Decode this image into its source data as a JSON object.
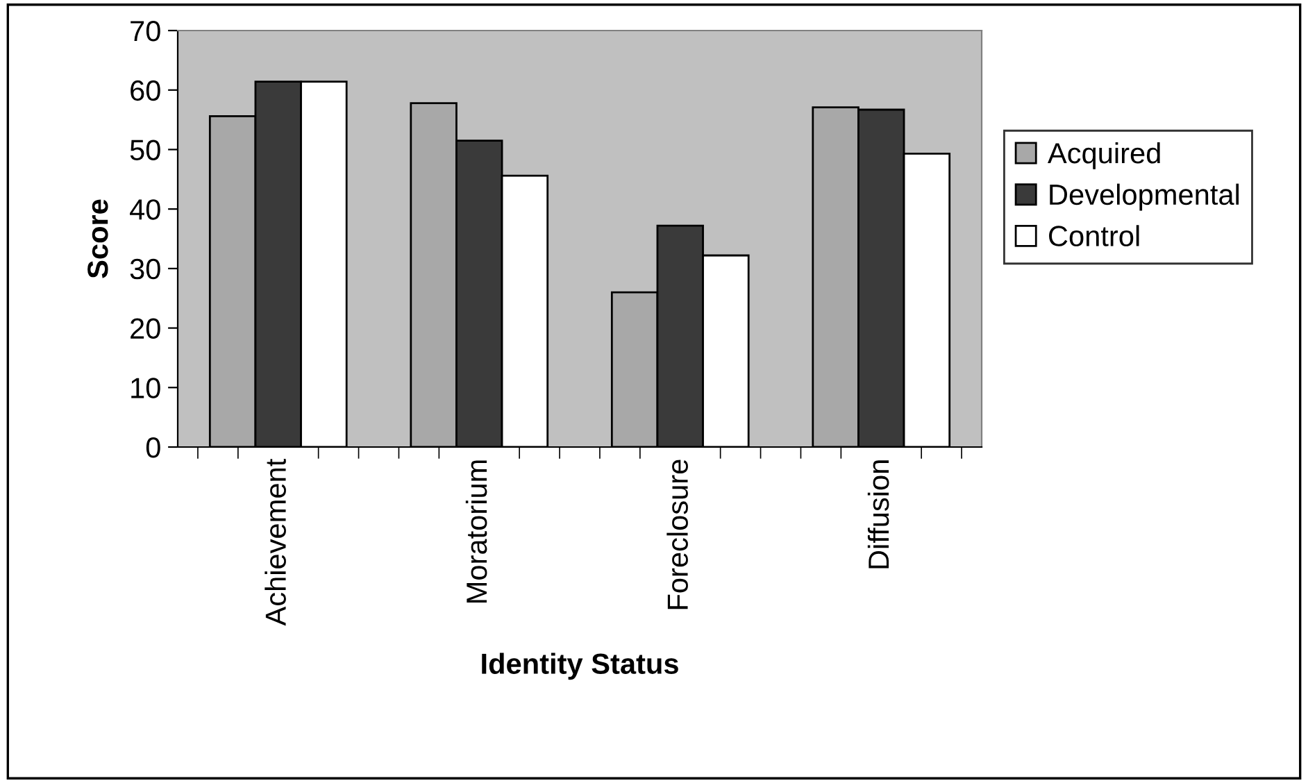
{
  "chart_data": {
    "type": "bar",
    "xlabel": "Identity Status",
    "ylabel": "Score",
    "categories": [
      "Achievement",
      "Moratorium",
      "Foreclosure",
      "Diffusion"
    ],
    "series": [
      {
        "name": "Acquired",
        "color": "#a8a8a8",
        "values": [
          55.6,
          57.8,
          26.0,
          57.1
        ]
      },
      {
        "name": "Developmental",
        "color": "#3a3a3a",
        "values": [
          61.4,
          51.5,
          37.2,
          56.7
        ]
      },
      {
        "name": "Control",
        "color": "#ffffff",
        "values": [
          61.4,
          45.6,
          32.2,
          49.3
        ]
      }
    ],
    "ylim": [
      0,
      70
    ],
    "yticks": [
      0,
      10,
      20,
      30,
      40,
      50,
      60,
      70
    ],
    "grid": false,
    "legend": "right"
  }
}
